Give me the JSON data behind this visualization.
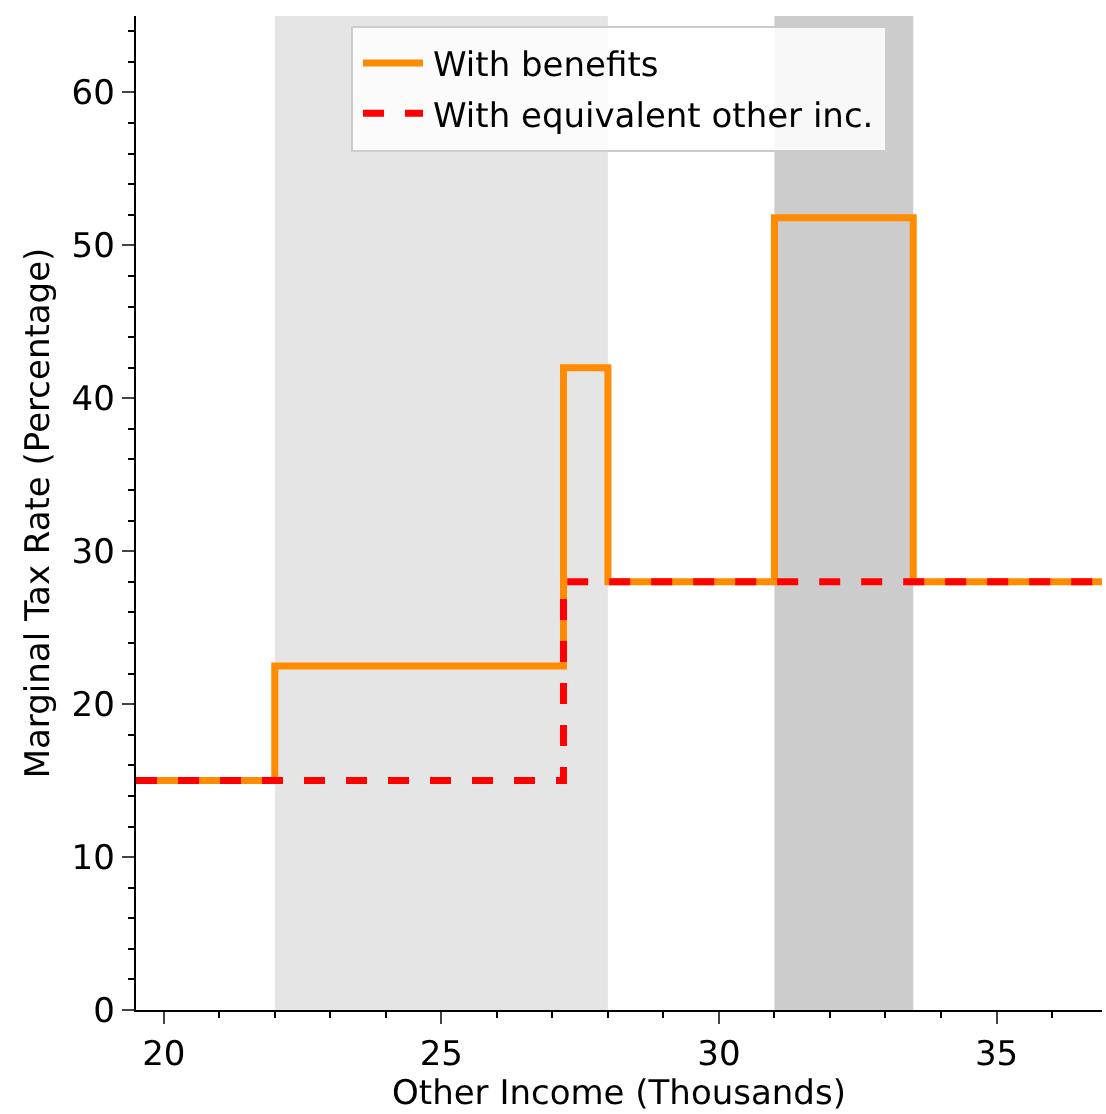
{
  "chart_data": {
    "type": "step",
    "xlabel": "Other Income (Thousands)",
    "ylabel": "Marginal Tax Rate (Percentage)",
    "series": [
      {
        "name": "With benefits",
        "color": "#ff8c00",
        "line_style": "solid",
        "x": [
          19.5,
          22,
          27.2,
          28,
          31,
          33.5,
          36.9
        ],
        "values": [
          15,
          22.5,
          42,
          28,
          51.8,
          28,
          28
        ]
      },
      {
        "name": "With equivalent other inc.",
        "color": "#ff0000",
        "line_style": "dashed",
        "x": [
          19.5,
          27.2,
          36.9
        ],
        "values": [
          15,
          28,
          28
        ]
      }
    ],
    "bands": [
      {
        "axis": "x",
        "from": 22,
        "to": 28,
        "color": "#e5e5e5"
      },
      {
        "axis": "x",
        "from": 31,
        "to": 33.5,
        "color": "#cccccc"
      }
    ],
    "xlim": [
      19.5,
      36.9
    ],
    "xticks": [
      20,
      25,
      30,
      35
    ],
    "ylim": [
      0,
      65
    ],
    "yticks": [
      0,
      10,
      20,
      30,
      40,
      50,
      60
    ],
    "grid": false,
    "legend": "top",
    "marker": "none"
  }
}
